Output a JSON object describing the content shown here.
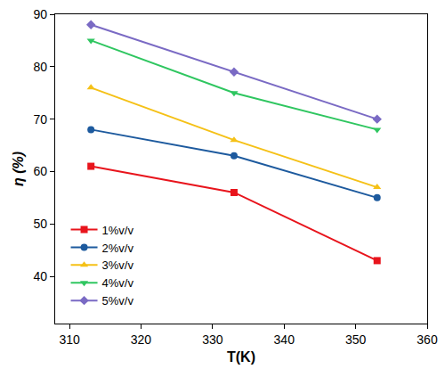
{
  "chart_data": {
    "type": "line",
    "x_label": "T(K)",
    "y_label": "η (%)",
    "x": [
      313,
      333,
      353
    ],
    "series": [
      {
        "name": "1%v/v",
        "color": "#e8141c",
        "marker": "square",
        "values": [
          61,
          56,
          43
        ]
      },
      {
        "name": "2%v/v",
        "color": "#1d5a9e",
        "marker": "circle",
        "values": [
          68,
          63,
          55
        ]
      },
      {
        "name": "3%v/v",
        "color": "#f5c117",
        "marker": "triangle-up",
        "values": [
          76,
          66,
          57
        ]
      },
      {
        "name": "4%v/v",
        "color": "#2fc660",
        "marker": "triangle-down",
        "values": [
          85,
          75,
          68
        ]
      },
      {
        "name": "5%v/v",
        "color": "#7a6ac4",
        "marker": "diamond",
        "values": [
          88,
          79,
          70
        ]
      }
    ],
    "xlim": [
      308,
      360
    ],
    "xticks": [
      310,
      320,
      330,
      340,
      350,
      360
    ],
    "ylim": [
      31,
      90
    ],
    "yticks": [
      40,
      50,
      60,
      70,
      80,
      90
    ],
    "grid": false,
    "legend": "lower left"
  }
}
